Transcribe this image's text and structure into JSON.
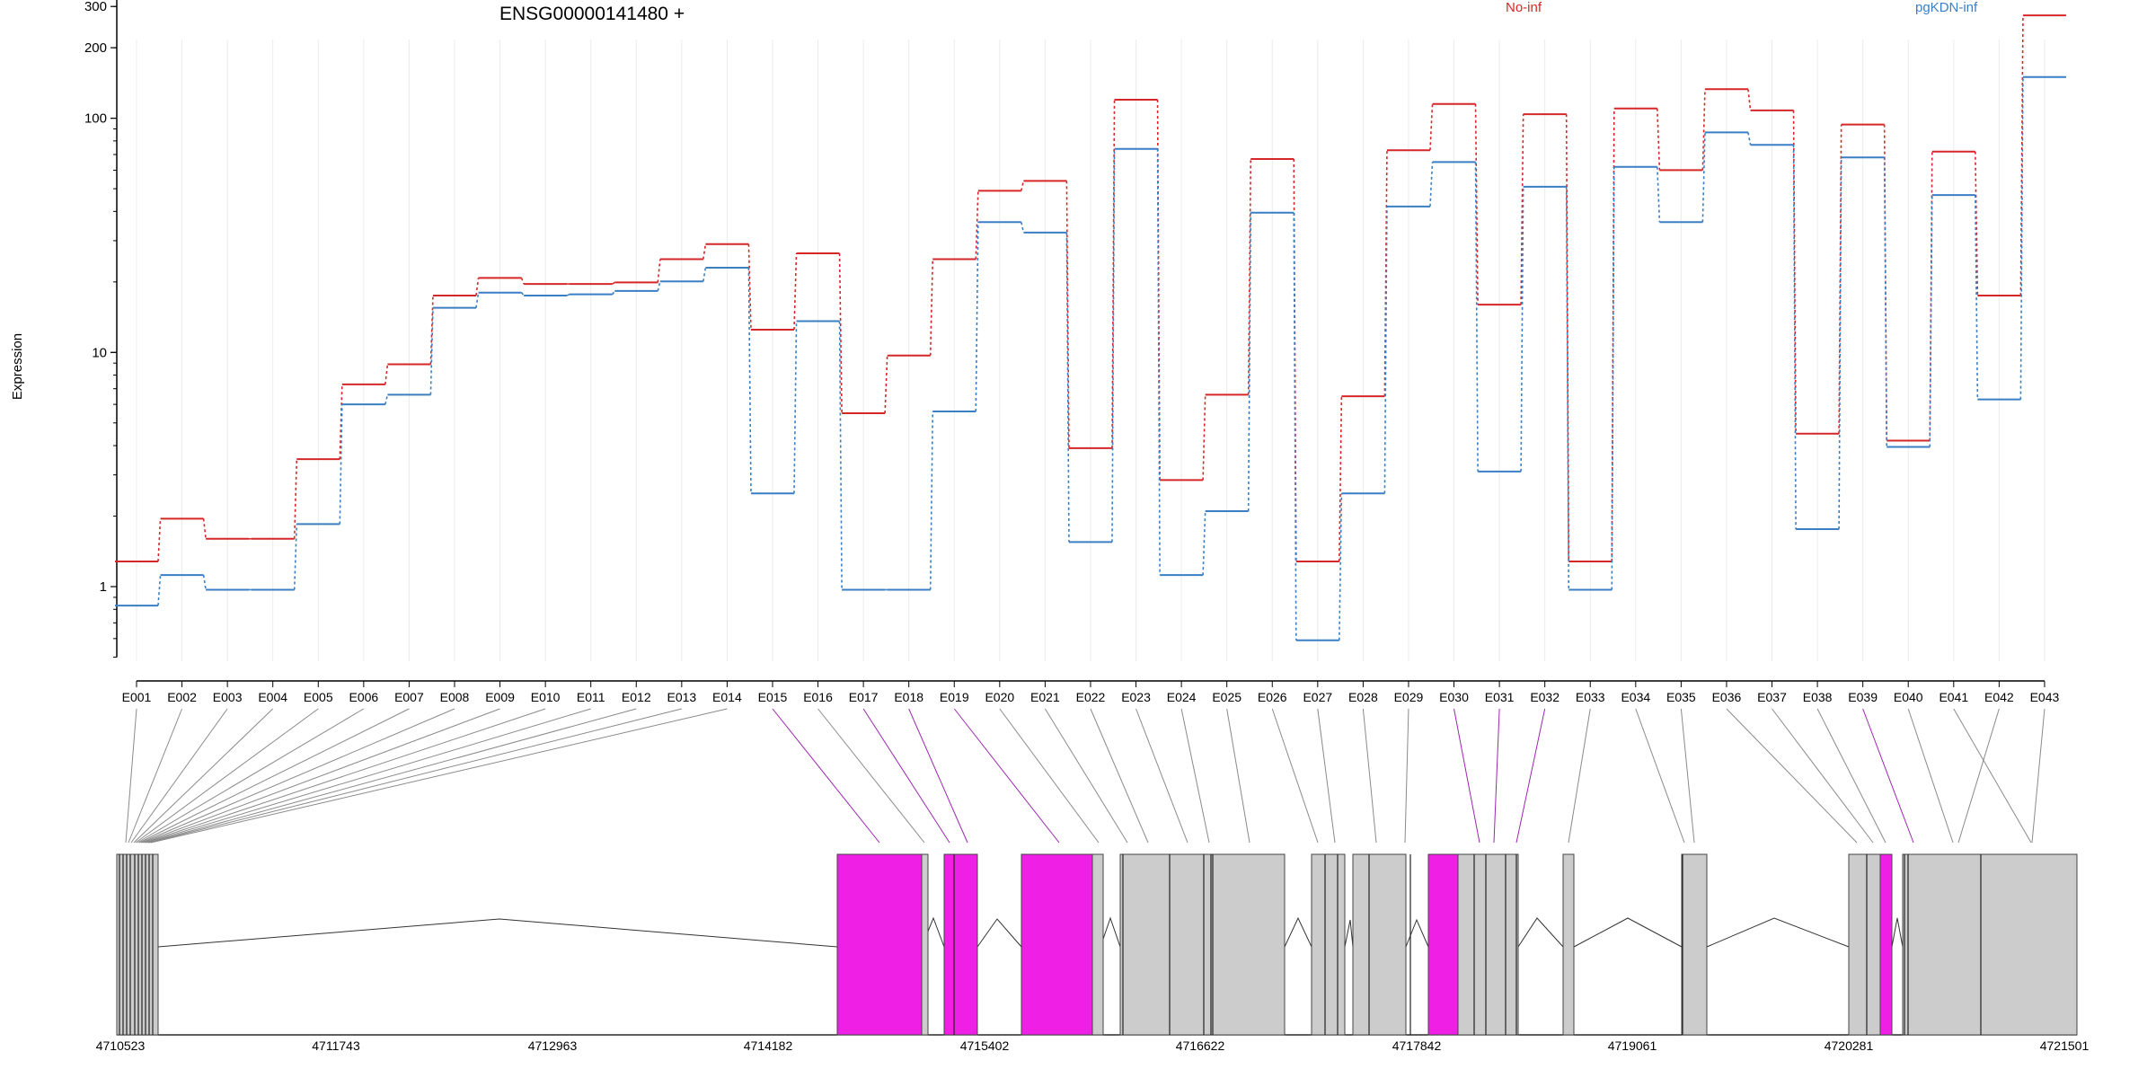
{
  "chart_data": {
    "type": "line",
    "title": "ENSG00000141480 +",
    "ylabel": "Expression",
    "yscale": "log",
    "ylim": [
      0.5,
      350
    ],
    "yticks": [
      1,
      10,
      100,
      200,
      300
    ],
    "ytick_labels": [
      "1",
      "10",
      "100",
      "200",
      "300"
    ],
    "categories": [
      "E001",
      "E002",
      "E003",
      "E004",
      "E005",
      "E006",
      "E007",
      "E008",
      "E009",
      "E010",
      "E011",
      "E012",
      "E013",
      "E014",
      "E015",
      "E016",
      "E017",
      "E018",
      "E019",
      "E020",
      "E021",
      "E022",
      "E023",
      "E024",
      "E025",
      "E026",
      "E027",
      "E028",
      "E029",
      "E030",
      "E031",
      "E032",
      "E033",
      "E034",
      "E035",
      "E036",
      "E037",
      "E038",
      "E039",
      "E040",
      "E041",
      "E042",
      "E043"
    ],
    "series": [
      {
        "name": "No-inf",
        "color": "#d62728",
        "values": [
          1.28,
          1.95,
          1.6,
          1.6,
          3.5,
          7.3,
          8.9,
          17.5,
          20.8,
          19.6,
          19.6,
          19.9,
          25,
          29,
          12.5,
          26.5,
          5.5,
          9.7,
          25,
          49,
          54,
          3.9,
          120,
          2.85,
          6.6,
          67,
          1.28,
          6.5,
          73,
          115,
          16,
          104,
          1.28,
          110,
          60,
          133,
          108,
          4.5,
          94,
          4.2,
          72,
          17.5,
          275
        ]
      },
      {
        "name": "pgKDN-inf",
        "color": "#3a7fc4",
        "values": [
          0.83,
          1.12,
          0.97,
          0.97,
          1.85,
          6,
          6.6,
          15.5,
          18,
          17.5,
          17.7,
          18.3,
          20.1,
          23,
          2.5,
          13.6,
          0.97,
          0.97,
          5.6,
          36,
          32.5,
          1.55,
          74,
          1.12,
          2.1,
          39.5,
          0.59,
          2.5,
          42,
          65,
          3.1,
          51,
          0.97,
          62,
          36,
          87,
          77,
          1.76,
          68,
          3.95,
          47,
          6.3,
          150
        ]
      }
    ],
    "legend": [
      "No-inf",
      "pgKDN-inf"
    ],
    "legend_placement": "top-right",
    "grid": "vertical",
    "gene_model": {
      "coordinates": [
        "4710523",
        "4711743",
        "4712963",
        "4714182",
        "4715402",
        "4716622",
        "4717842",
        "4719061",
        "4720281",
        "4721501"
      ],
      "highlight_color": "#ef1fe6",
      "exon_fill_color": "#cccccc",
      "highlighted_exons": [
        "E015",
        "E017",
        "E018",
        "E019",
        "E030",
        "E031",
        "E032",
        "E039"
      ]
    }
  }
}
